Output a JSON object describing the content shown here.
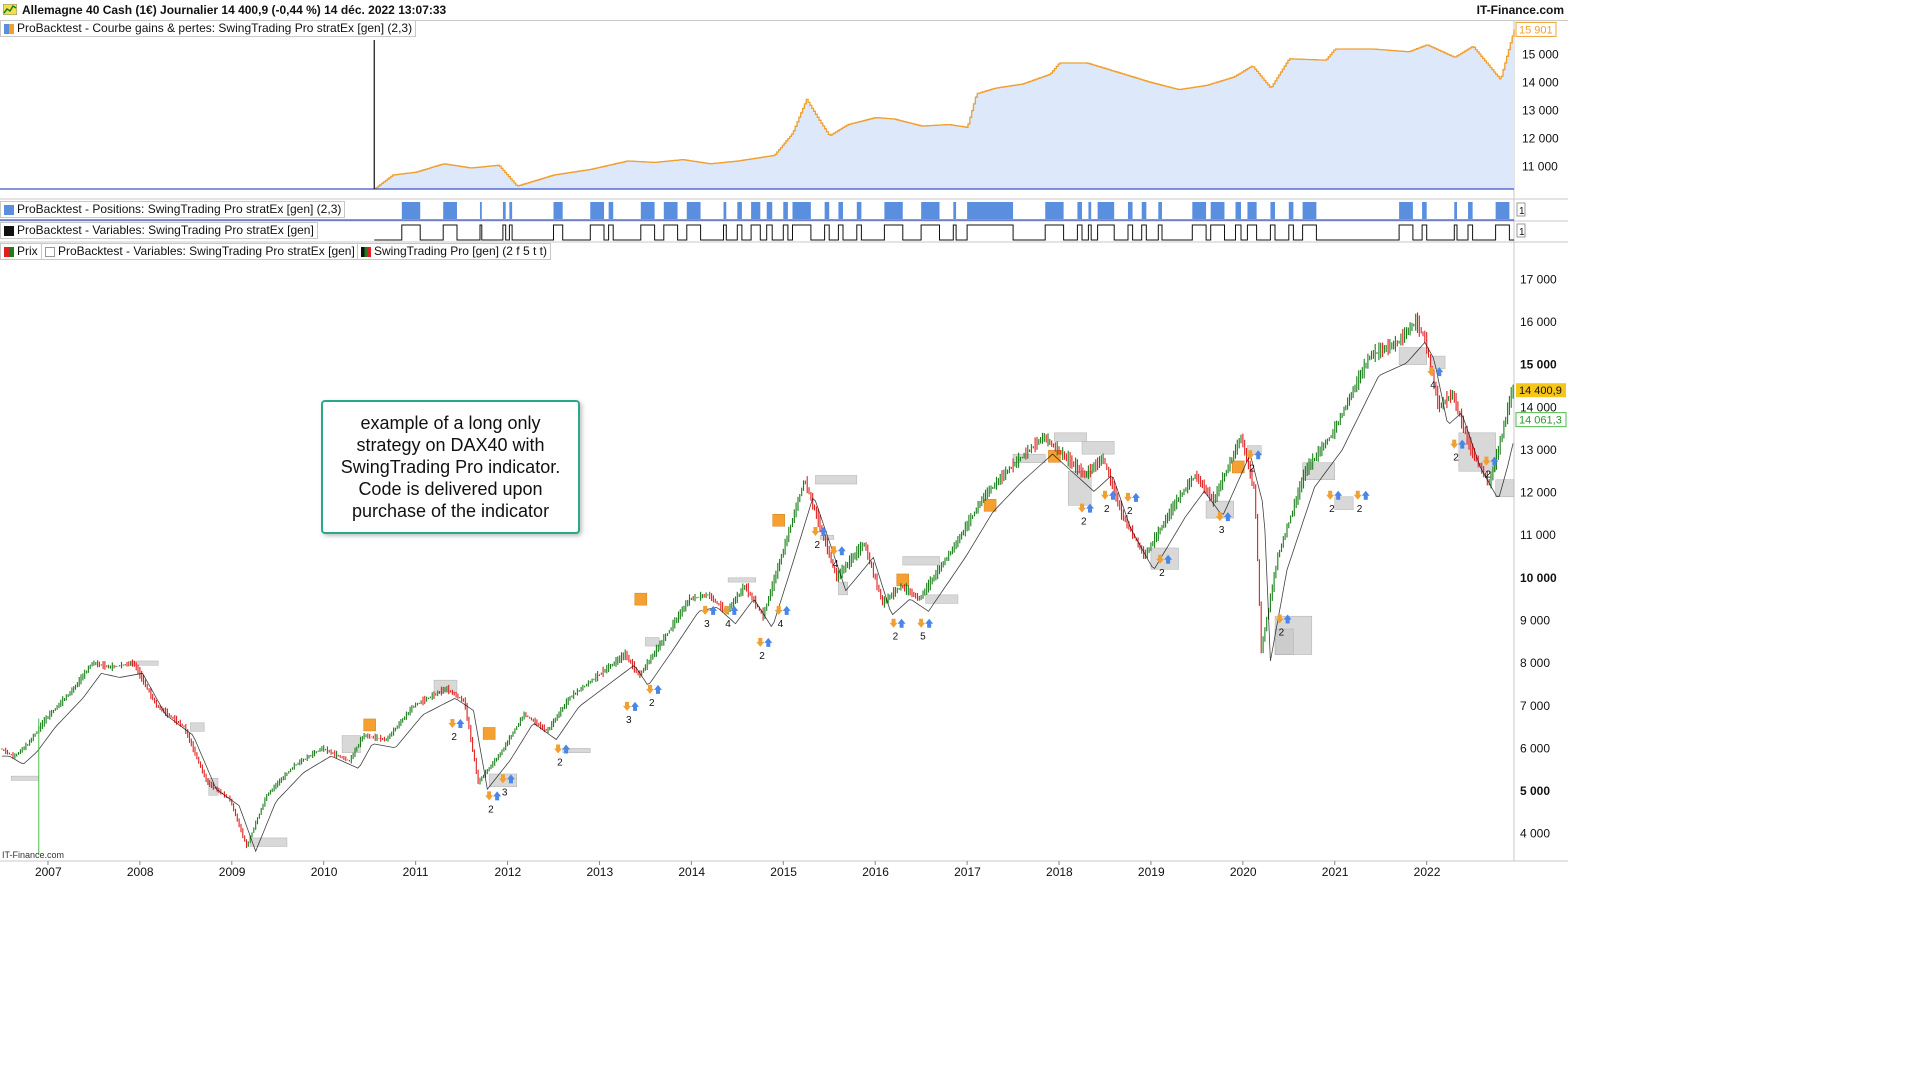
{
  "header": {
    "title": "Allemagne 40 Cash (1€) Journalier 14 400,9 (-0,44 %) 14 déc. 2022 13:07:33",
    "brand": "IT-Finance.com"
  },
  "panels": {
    "equity": {
      "label": "ProBacktest - Courbe gains & pertes: SwingTrading Pro stratEx [gen] (2,3)",
      "last_value": "15 901",
      "swatch": "#5a8fe0"
    },
    "positions": {
      "label": "ProBacktest - Positions: SwingTrading Pro stratEx [gen] (2,3)",
      "value": "1",
      "swatch": "#5a8fe0"
    },
    "variables": {
      "label": "ProBacktest - Variables: SwingTrading Pro stratEx [gen]",
      "value": "1",
      "swatch": "#111111"
    },
    "price": {
      "label_prix": "Prix",
      "label_vars": "ProBacktest - Variables: SwingTrading Pro stratEx [gen]",
      "label_ind": "SwingTrading Pro [gen] (2 f 5 t t)",
      "last_price": "14 400,9",
      "indicator_value": "14 061,3"
    }
  },
  "note": "example of a long only strategy on DAX40 with SwingTrading Pro indicator. Code is delivered upon purchase of the indicator",
  "watermark": "IT-Finance.com",
  "colors": {
    "up": "#1a7f1a",
    "down": "#e02020",
    "equity_line": "#f0a030",
    "equity_fill": "#dde9fb",
    "equity_rise": "#5a8fe0",
    "position": "#5a8fe0",
    "support_box": "#c8c8c8",
    "entry_square": "#f5a030",
    "arrow_up": "#4a86e8",
    "arrow_down": "#f0a030",
    "note_border": "#2aa88a"
  },
  "chart_data": [
    {
      "type": "line",
      "name": "equity",
      "ylim": [
        10200,
        15950
      ],
      "yticks": [
        "11 000",
        "12 000",
        "13 000",
        "14 000",
        "15 000"
      ],
      "x": [
        2010.55,
        2010.75,
        2011.0,
        2011.3,
        2011.6,
        2011.9,
        2012.1,
        2012.5,
        2012.9,
        2013.3,
        2013.6,
        2013.9,
        2014.2,
        2014.5,
        2014.9,
        2015.1,
        2015.25,
        2015.4,
        2015.5,
        2015.7,
        2016.0,
        2016.2,
        2016.5,
        2016.8,
        2017.0,
        2017.1,
        2017.3,
        2017.6,
        2017.9,
        2018.0,
        2018.3,
        2018.6,
        2019.0,
        2019.3,
        2019.6,
        2019.9,
        2020.1,
        2020.3,
        2020.5,
        2020.9,
        2021.0,
        2021.4,
        2021.8,
        2022.0,
        2022.3,
        2022.5,
        2022.8,
        2022.95
      ],
      "y": [
        10200,
        10700,
        10800,
        11100,
        10950,
        11050,
        10300,
        10700,
        10900,
        11200,
        11150,
        11250,
        11100,
        11200,
        11400,
        12200,
        13400,
        12600,
        12100,
        12500,
        12750,
        12700,
        12450,
        12500,
        12400,
        13600,
        13800,
        13950,
        14300,
        14700,
        14700,
        14400,
        14000,
        13750,
        13900,
        14200,
        14600,
        13800,
        14850,
        14800,
        15200,
        15200,
        15100,
        15350,
        14900,
        15300,
        14100,
        15900
      ]
    },
    {
      "type": "area",
      "name": "positions",
      "x_ranges": [
        [
          2010.85,
          2011.05
        ],
        [
          2011.3,
          2011.45
        ],
        [
          2011.7,
          2011.72
        ],
        [
          2011.95,
          2011.98
        ],
        [
          2012.02,
          2012.05
        ],
        [
          2012.5,
          2012.6
        ],
        [
          2012.9,
          2013.05
        ],
        [
          2013.1,
          2013.15
        ],
        [
          2013.45,
          2013.6
        ],
        [
          2013.7,
          2013.85
        ],
        [
          2013.95,
          2014.1
        ],
        [
          2014.35,
          2014.38
        ],
        [
          2014.5,
          2014.55
        ],
        [
          2014.65,
          2014.75
        ],
        [
          2014.82,
          2014.88
        ],
        [
          2015.0,
          2015.05
        ],
        [
          2015.1,
          2015.3
        ],
        [
          2015.45,
          2015.5
        ],
        [
          2015.6,
          2015.65
        ],
        [
          2015.8,
          2015.85
        ],
        [
          2016.1,
          2016.3
        ],
        [
          2016.5,
          2016.7
        ],
        [
          2016.85,
          2016.88
        ],
        [
          2017.0,
          2017.5
        ],
        [
          2017.85,
          2018.05
        ],
        [
          2018.2,
          2018.25
        ],
        [
          2018.32,
          2018.35
        ],
        [
          2018.42,
          2018.6
        ],
        [
          2018.75,
          2018.8
        ],
        [
          2018.9,
          2018.95
        ],
        [
          2019.08,
          2019.12
        ],
        [
          2019.45,
          2019.6
        ],
        [
          2019.65,
          2019.8
        ],
        [
          2019.92,
          2019.98
        ],
        [
          2020.05,
          2020.15
        ],
        [
          2020.3,
          2020.35
        ],
        [
          2020.5,
          2020.55
        ],
        [
          2020.65,
          2020.8
        ],
        [
          2021.7,
          2021.85
        ],
        [
          2021.95,
          2022.0
        ],
        [
          2022.3,
          2022.33
        ],
        [
          2022.45,
          2022.5
        ],
        [
          2022.75,
          2022.9
        ]
      ]
    },
    {
      "type": "line",
      "name": "Prix",
      "ylim": [
        3500,
        17500
      ],
      "yticks": [
        "4 000",
        "5 000",
        "6 000",
        "7 000",
        "8 000",
        "9 000",
        "10 000",
        "11 000",
        "12 000",
        "13 000",
        "14 000",
        "15 000",
        "16 000",
        "17 000"
      ],
      "x_ticks": [
        "2007",
        "2008",
        "2009",
        "2010",
        "2011",
        "2012",
        "2013",
        "2014",
        "2015",
        "2016",
        "2017",
        "2018",
        "2019",
        "2020",
        "2021",
        "2022"
      ],
      "x": [
        2006.5,
        2006.65,
        2006.8,
        2007.0,
        2007.3,
        2007.5,
        2007.7,
        2007.95,
        2008.2,
        2008.5,
        2008.75,
        2009.0,
        2009.18,
        2009.4,
        2009.7,
        2010.0,
        2010.3,
        2010.45,
        2010.7,
        2011.0,
        2011.35,
        2011.55,
        2011.7,
        2011.95,
        2012.2,
        2012.45,
        2012.7,
        2013.0,
        2013.3,
        2013.45,
        2013.7,
        2014.0,
        2014.2,
        2014.4,
        2014.6,
        2014.8,
        2015.0,
        2015.25,
        2015.45,
        2015.6,
        2015.9,
        2016.1,
        2016.3,
        2016.5,
        2016.9,
        2017.2,
        2017.5,
        2017.85,
        2018.0,
        2018.3,
        2018.5,
        2018.7,
        2018.95,
        2019.3,
        2019.5,
        2019.7,
        2020.0,
        2020.15,
        2020.22,
        2020.4,
        2020.7,
        2021.0,
        2021.4,
        2021.7,
        2021.9,
        2022.0,
        2022.15,
        2022.3,
        2022.5,
        2022.7,
        2022.8,
        2022.95
      ],
      "y": [
        6000,
        5800,
        6100,
        6700,
        7400,
        8000,
        7900,
        8000,
        7000,
        6500,
        5200,
        4800,
        3700,
        4900,
        5600,
        6000,
        5700,
        6300,
        6200,
        7000,
        7400,
        7100,
        5200,
        5900,
        6800,
        6400,
        7200,
        7700,
        8200,
        7700,
        8500,
        9500,
        9600,
        9200,
        9800,
        9100,
        10500,
        12300,
        11000,
        10000,
        10800,
        9400,
        9800,
        9500,
        10800,
        11900,
        12600,
        13300,
        13000,
        12400,
        12800,
        11500,
        10500,
        11800,
        12400,
        11800,
        13300,
        12000,
        8300,
        10500,
        12500,
        13400,
        15200,
        15500,
        16000,
        15600,
        14000,
        14300,
        13000,
        12200,
        13000,
        14400
      ]
    }
  ]
}
